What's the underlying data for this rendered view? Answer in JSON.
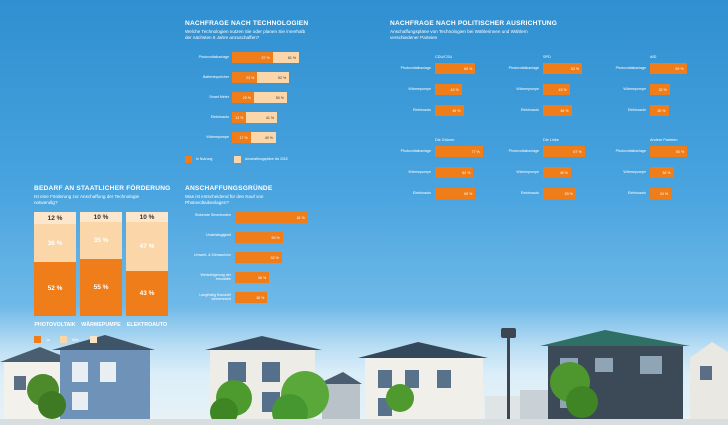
{
  "colors": {
    "orange": "#ef7d1a",
    "beige": "#fbd6a8",
    "white": "#ffffff"
  },
  "technologies": {
    "title": "NACHFRAGE NACH TECHNOLOGIEN",
    "subtitle_line1": "Welche Technologien nutzen Sie oder planen Sie innerhalb",
    "subtitle_line2": "der nächsten 5 Jahre anzuschaffen?",
    "legend_in_use": "In Nutzung",
    "legend_planned": "Anschaffungspläne bis 2018"
  },
  "support": {
    "title": "BEDARF AN STAATLICHER FÖRDERUNG",
    "subtitle_line1": "Ist eine Förderung zur Anschaffung der Technologie",
    "subtitle_line2": "notwendig?",
    "legend_yes": "Ja",
    "legend_no": "Nein"
  },
  "reasons": {
    "title": "ANSCHAFFUNGSGRÜNDE",
    "subtitle_line1": "Was ist entscheidend für den Kauf von",
    "subtitle_line2": "Photovoltaikanlagen?"
  },
  "politics": {
    "title": "NACHFRAGE NACH POLITISCHER AUSRICHTUNG",
    "subtitle_line1": "Anschaffungspläne von Technologien bei Wählerinnen und Wählern",
    "subtitle_line2": "verschiedener Parteien"
  },
  "chart_data": [
    {
      "type": "bar",
      "orientation": "horizontal",
      "stacked": true,
      "title": "NACHFRAGE NACH TECHNOLOGIEN",
      "categories": [
        "Photovoltaikanlage",
        "Batteriespeicher",
        "Smart Meter",
        "Elektroauto",
        "Wärmepumpe"
      ],
      "series": [
        {
          "name": "In Nutzung",
          "values": [
            37,
            23,
            20,
            13,
            17
          ],
          "labels": [
            "37 %",
            "23 %",
            "20 %",
            "13 %",
            "17 %"
          ]
        },
        {
          "name": "Anschaffungspläne bis 2018",
          "total_values": [
            61,
            52,
            50,
            41,
            40
          ],
          "labels": [
            "61 %",
            "52 %",
            "50 %",
            "41 %",
            "40 %"
          ]
        }
      ],
      "xlim": [
        0,
        100
      ]
    },
    {
      "type": "bar",
      "stacked": true,
      "title": "BEDARF AN STAATLICHER FÖRDERUNG",
      "categories": [
        "PHOTOVOLTAIK",
        "WÄRMEPUMPE",
        "ELEKTROAUTO"
      ],
      "series": [
        {
          "name": "Ja",
          "values": [
            52,
            55,
            43
          ],
          "labels": [
            "52 %",
            "55 %",
            "43 %"
          ]
        },
        {
          "name": "Nein",
          "values": [
            36,
            35,
            47
          ],
          "labels": [
            "36 %",
            "35 %",
            "47 %"
          ]
        },
        {
          "name": "",
          "values": [
            12,
            10,
            10
          ],
          "labels": [
            "12 %",
            "10 %",
            "10 %"
          ]
        }
      ],
      "ylim": [
        0,
        100
      ]
    },
    {
      "type": "bar",
      "orientation": "horizontal",
      "title": "ANSCHAFFUNGSGRÜNDE",
      "categories": [
        "Sinkende Stromkosten",
        "Unabhängigkeit",
        "Umwelt- & Klimaschutz",
        "Wertsteigerung der Immobilie",
        "Langfristig finanziell lohnenswert"
      ],
      "values": [
        81,
        53,
        52,
        38,
        36
      ],
      "labels": [
        "81 %",
        "53 %",
        "52 %",
        "38 %",
        "36 %"
      ],
      "xlim": [
        0,
        100
      ]
    },
    {
      "type": "bar",
      "orientation": "horizontal",
      "title": "NACHFRAGE NACH POLITISCHER AUSRICHTUNG",
      "groups": [
        {
          "name": "CDU/CSU",
          "categories": [
            "Photovoltaikanlage",
            "Wärmepumpe",
            "Elektroauto"
          ],
          "values": [
            65,
            43,
            46
          ],
          "labels": [
            "65 %",
            "43 %",
            "46 %"
          ]
        },
        {
          "name": "SPD",
          "categories": [
            "Photovoltaikanlage",
            "Wärmepumpe",
            "Elektroauto"
          ],
          "values": [
            63,
            43,
            46
          ],
          "labels": [
            "63 %",
            "43 %",
            "46 %"
          ]
        },
        {
          "name": "AfD",
          "categories": [
            "Photovoltaikanlage",
            "Wärmepumpe",
            "Elektroauto"
          ],
          "values": [
            59,
            32,
            30
          ],
          "labels": [
            "59 %",
            "32 %",
            "30 %"
          ]
        },
        {
          "name": "Die Grünen",
          "categories": [
            "Photovoltaikanlage",
            "Wärmepumpe",
            "Elektroauto"
          ],
          "values": [
            77,
            62,
            65
          ],
          "labels": [
            "77 %",
            "62 %",
            "65 %"
          ]
        },
        {
          "name": "Die Linke",
          "categories": [
            "Photovoltaikanlage",
            "Wärmepumpe",
            "Elektroauto"
          ],
          "values": [
            67,
            45,
            53
          ],
          "labels": [
            "67 %",
            "45 %",
            "53 %"
          ]
        },
        {
          "name": "Andere Parteien",
          "categories": [
            "Photovoltaikanlage",
            "Wärmepumpe",
            "Elektroauto"
          ],
          "values": [
            60,
            38,
            34
          ],
          "labels": [
            "60 %",
            "38 %",
            "34 %"
          ]
        }
      ],
      "xlim": [
        0,
        100
      ]
    }
  ]
}
